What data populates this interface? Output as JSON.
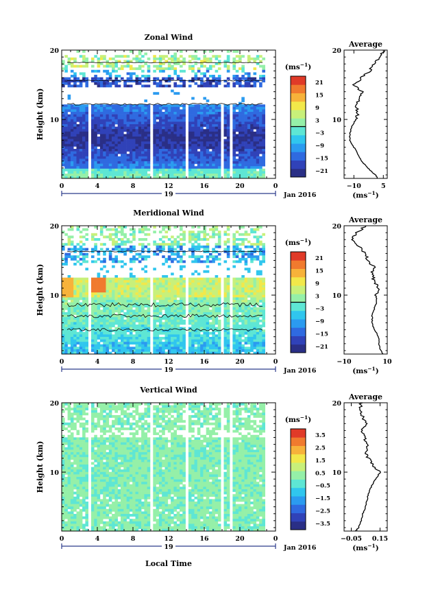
{
  "chart_data": [
    {
      "type": "heatmap",
      "title": "Zonal Wind",
      "ylabel": "Height (km)",
      "x_ticks": [
        "0",
        "4",
        "8",
        "12",
        "16",
        "20",
        "0"
      ],
      "y_ticks": [
        "20",
        "10"
      ],
      "xlim": [
        0,
        24
      ],
      "ylim": [
        1.5,
        20
      ],
      "date_day": "19",
      "date_label": "Jan 2016",
      "colorbar": {
        "unit": "(ms",
        "unit_exp": "−1",
        "unit_close": ")",
        "ticks": [
          "21",
          "15",
          "9",
          "3",
          "−3",
          "−9",
          "−15",
          "−21"
        ],
        "range": [
          -24,
          24
        ]
      },
      "average": {
        "title": "Average",
        "x_ticks": [
          "−10",
          "5"
        ],
        "y_ticks": [
          "20",
          "10"
        ],
        "xlim": [
          -15,
          7
        ],
        "unit": "(ms",
        "unit_exp": "−1",
        "unit_close": ")",
        "profile": [
          [
            1.5,
            2
          ],
          [
            2,
            1
          ],
          [
            3,
            -3
          ],
          [
            4,
            -6
          ],
          [
            5,
            -8
          ],
          [
            6,
            -10
          ],
          [
            7,
            -12
          ],
          [
            8,
            -12
          ],
          [
            9,
            -11
          ],
          [
            10,
            -9
          ],
          [
            11,
            -8
          ],
          [
            12,
            -9
          ],
          [
            13,
            -7
          ],
          [
            14,
            -6
          ],
          [
            15,
            -10
          ],
          [
            16,
            -6
          ],
          [
            17,
            -2
          ],
          [
            18,
            0
          ],
          [
            19,
            3
          ],
          [
            20,
            6
          ]
        ]
      }
    },
    {
      "type": "heatmap",
      "title": "Meridional Wind",
      "ylabel": "Height (km)",
      "x_ticks": [
        "0",
        "4",
        "8",
        "12",
        "16",
        "20",
        "0"
      ],
      "y_ticks": [
        "20",
        "10"
      ],
      "xlim": [
        0,
        24
      ],
      "ylim": [
        1.5,
        20
      ],
      "date_day": "19",
      "date_label": "Jan 2016",
      "colorbar": {
        "unit": "(ms",
        "unit_exp": "−1",
        "unit_close": ")",
        "ticks": [
          "21",
          "15",
          "9",
          "3",
          "−3",
          "−9",
          "−15",
          "−21"
        ],
        "range": [
          -24,
          24
        ]
      },
      "average": {
        "title": "Average",
        "x_ticks": [
          "−10",
          "10"
        ],
        "y_ticks": [
          "20",
          "10"
        ],
        "xlim": [
          -10,
          10
        ],
        "unit": "(ms",
        "unit_exp": "−1",
        "unit_close": ")",
        "profile": [
          [
            1.5,
            8
          ],
          [
            2,
            7
          ],
          [
            3,
            6
          ],
          [
            4,
            6
          ],
          [
            5,
            4
          ],
          [
            6,
            3
          ],
          [
            7,
            3
          ],
          [
            8,
            4
          ],
          [
            9,
            5
          ],
          [
            10,
            5
          ],
          [
            11,
            6
          ],
          [
            12,
            4
          ],
          [
            13,
            3
          ],
          [
            14,
            4
          ],
          [
            15,
            1
          ],
          [
            16,
            0
          ],
          [
            17,
            -3
          ],
          [
            18,
            -7
          ],
          [
            19,
            -4
          ],
          [
            20,
            0
          ]
        ]
      }
    },
    {
      "type": "heatmap",
      "title": "Vertical Wind",
      "ylabel": "Height (km)",
      "xlabel": "Local Time",
      "x_ticks": [
        "0",
        "4",
        "8",
        "12",
        "16",
        "20",
        "0"
      ],
      "y_ticks": [
        "20",
        "10"
      ],
      "xlim": [
        0,
        24
      ],
      "ylim": [
        1.5,
        20
      ],
      "date_day": "19",
      "date_label": "Jan 2016",
      "colorbar": {
        "unit": "(ms",
        "unit_exp": "−1",
        "unit_close": ")",
        "ticks": [
          "3.5",
          "2.5",
          "1.5",
          "0.5",
          "−0.5",
          "−1.5",
          "−2.5",
          "−3.5"
        ],
        "range": [
          -4,
          4
        ]
      },
      "average": {
        "title": "Average",
        "x_ticks": [
          "−0.05",
          "0.15"
        ],
        "y_ticks": [
          "20",
          "10"
        ],
        "xlim": [
          -0.1,
          0.2
        ],
        "unit": "(ms",
        "unit_exp": "−1",
        "unit_close": ")",
        "profile": [
          [
            1.5,
            -0.02
          ],
          [
            2,
            0.0
          ],
          [
            3,
            0.02
          ],
          [
            4,
            0.03
          ],
          [
            5,
            0.05
          ],
          [
            6,
            0.06
          ],
          [
            7,
            0.07
          ],
          [
            8,
            0.09
          ],
          [
            9,
            0.12
          ],
          [
            10,
            0.15
          ],
          [
            11,
            0.1
          ],
          [
            12,
            0.07
          ],
          [
            13,
            0.05
          ],
          [
            14,
            0.06
          ],
          [
            15,
            0.04
          ],
          [
            16,
            0.02
          ],
          [
            17,
            0.05
          ],
          [
            18,
            0.03
          ],
          [
            19,
            0.01
          ],
          [
            20,
            0.02
          ]
        ]
      }
    }
  ]
}
